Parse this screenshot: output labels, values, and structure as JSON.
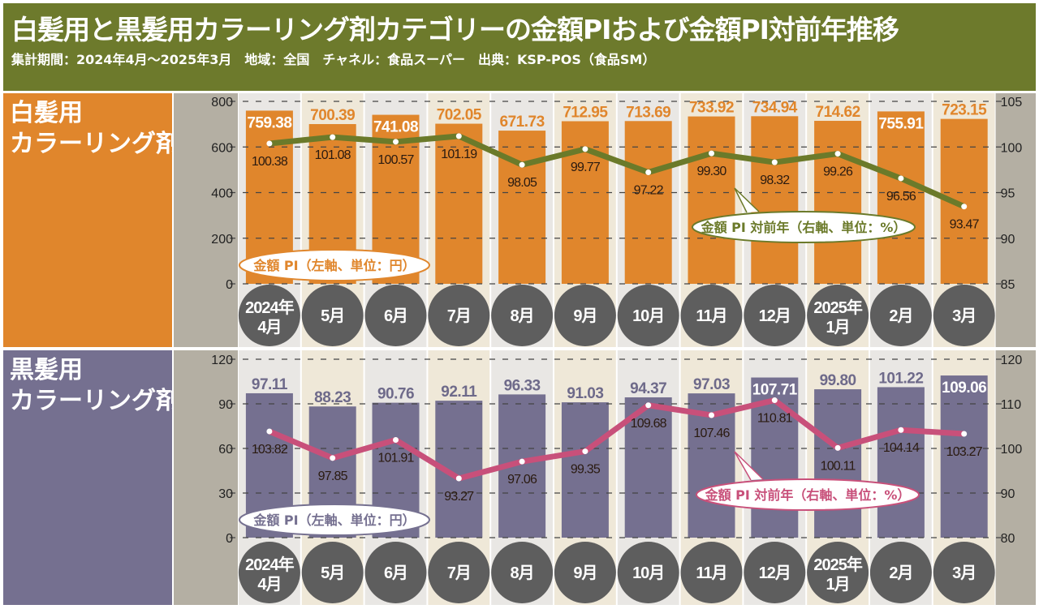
{
  "header": {
    "title": "白髪用と黒髪用カラーリング剤カテゴリーの金額PIおよび金額PI対前年推移",
    "subtitle": "集計期間：2024年4月～2025年3月　地域：全国　チャネル：食品スーパー　出典：KSP-POS（食品SM）"
  },
  "colors": {
    "header": "#6d7a2c",
    "white_bar": "#e0862c",
    "black_bar": "#757090",
    "white_line": "#6b7a2a",
    "black_line": "#c8507a",
    "month_circle": "#5e5e5e"
  },
  "chart_data": [
    {
      "type": "bar+line",
      "panel_label": [
        "白髪用",
        "カラーリング剤"
      ],
      "categories": [
        [
          "2024年",
          "4月"
        ],
        [
          "5月"
        ],
        [
          "6月"
        ],
        [
          "7月"
        ],
        [
          "8月"
        ],
        [
          "9月"
        ],
        [
          "10月"
        ],
        [
          "11月"
        ],
        [
          "12月"
        ],
        [
          "2025年",
          "1月"
        ],
        [
          "2月"
        ],
        [
          "3月"
        ]
      ],
      "bar_series": {
        "name": "金額 PI（左軸、単位：円）",
        "values": [
          759.38,
          700.39,
          741.08,
          702.05,
          671.73,
          712.95,
          713.69,
          733.92,
          734.94,
          714.62,
          755.91,
          723.15
        ],
        "labels": [
          "759.38",
          "700.39",
          "741.08",
          "702.05",
          "671.73",
          "712.95",
          "713.69",
          "733.92",
          "734.94",
          "714.62",
          "755.91",
          "723.15"
        ]
      },
      "line_series": {
        "name": "金額 PI 対前年（右軸、単位：%）",
        "values": [
          100.38,
          101.08,
          100.57,
          101.19,
          98.05,
          99.77,
          97.22,
          99.3,
          98.32,
          99.26,
          96.56,
          93.47
        ],
        "labels": [
          "100.38",
          "101.08",
          "100.57",
          "101.19",
          "98.05",
          "99.77",
          "97.22",
          "99.30",
          "98.32",
          "99.26",
          "96.56",
          "93.47"
        ]
      },
      "left_axis": {
        "ylim": [
          0,
          800
        ],
        "ticks": [
          "0",
          "200",
          "400",
          "600",
          "800"
        ]
      },
      "right_axis": {
        "ylim": [
          85,
          105
        ],
        "ticks": [
          "85",
          "90",
          "95",
          "100",
          "105"
        ]
      },
      "grid": true
    },
    {
      "type": "bar+line",
      "panel_label": [
        "黒髪用",
        "カラーリング剤"
      ],
      "categories": [
        [
          "2024年",
          "4月"
        ],
        [
          "5月"
        ],
        [
          "6月"
        ],
        [
          "7月"
        ],
        [
          "8月"
        ],
        [
          "9月"
        ],
        [
          "10月"
        ],
        [
          "11月"
        ],
        [
          "12月"
        ],
        [
          "2025年",
          "1月"
        ],
        [
          "2月"
        ],
        [
          "3月"
        ]
      ],
      "bar_series": {
        "name": "金額 PI（左軸、単位：円）",
        "values": [
          97.11,
          88.23,
          90.76,
          92.11,
          96.33,
          91.03,
          94.37,
          97.03,
          107.71,
          99.8,
          101.22,
          109.06
        ],
        "labels": [
          "97.11",
          "88.23",
          "90.76",
          "92.11",
          "96.33",
          "91.03",
          "94.37",
          "97.03",
          "107.71",
          "99.80",
          "101.22",
          "109.06"
        ]
      },
      "line_series": {
        "name": "金額 PI 対前年（右軸、単位：%）",
        "values": [
          103.82,
          97.85,
          101.91,
          93.27,
          97.06,
          99.35,
          109.68,
          107.46,
          110.81,
          100.11,
          104.14,
          103.27
        ],
        "labels": [
          "103.82",
          "97.85",
          "101.91",
          "93.27",
          "97.06",
          "99.35",
          "109.68",
          "107.46",
          "110.81",
          "100.11",
          "104.14",
          "103.27"
        ]
      },
      "left_axis": {
        "ylim": [
          0,
          120
        ],
        "ticks": [
          "0",
          "30",
          "60",
          "90",
          "120"
        ]
      },
      "right_axis": {
        "ylim": [
          80,
          120
        ],
        "ticks": [
          "80",
          "90",
          "100",
          "110",
          "120"
        ]
      },
      "grid": true
    }
  ]
}
